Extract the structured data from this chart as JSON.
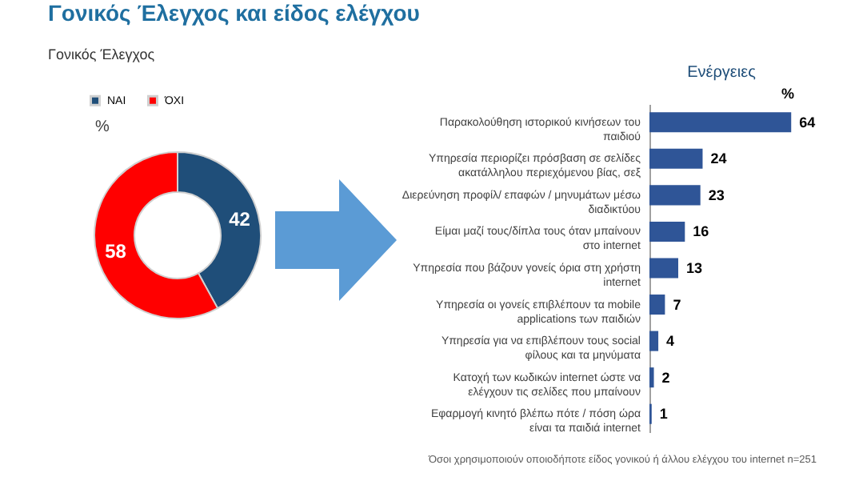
{
  "chart_data": [
    {
      "type": "donut",
      "title": "Γονικός Έλεγχος και είδος ελέγχου",
      "subtitle": "Γονικός Έλεγχος",
      "annotations": [
        "%"
      ],
      "categories": [
        "ΝΑΙ",
        "ΌΧΙ"
      ],
      "values": [
        42,
        58
      ],
      "colors": [
        "#1f4e79",
        "#ff0000"
      ],
      "data_labels": true,
      "legend": "top"
    },
    {
      "type": "bar",
      "orientation": "horizontal",
      "title": "Ενέργειες",
      "xlabel": "%",
      "categories": [
        "Παρακολούθηση ιστορικού κινήσεων του παιδιού",
        "Υπηρεσία περιορίζει πρόσβαση σε σελίδες ακατάλληλου περιεχόμενου βίας, σεξ",
        "Διερεύνηση προφίλ/ επαφών / μηνυμάτων μέσω διαδικτύου",
        "Είμαι μαζί τους/δίπλα τους όταν μπαίνουν στο internet",
        "Υπηρεσία που βάζουν γονείς όρια στη χρήστη internet",
        "Υπηρεσία οι γονείς επιβλέπουν τα mobile applications των παιδιών",
        "Υπηρεσία για να επιβλέπουν τους social φίλους και τα μηνύματα",
        "Κατοχή των κωδικών internet ώστε να ελέγχουν τις σελίδες που μπαίνουν",
        "Εφαρμογή κινητό βλέπω πότε / πόση ώρα είναι τα παιδιά internet"
      ],
      "series": [
        {
          "color": "#2f5597",
          "values": [
            64,
            24,
            23,
            16,
            13,
            7,
            4,
            2,
            1
          ]
        }
      ],
      "data_labels": true,
      "annotations": [
        "Όσοι χρησιμοποιούν οποιοδήποτε είδος γονικού ή άλλου ελέγχου του internet  n=251"
      ]
    }
  ]
}
